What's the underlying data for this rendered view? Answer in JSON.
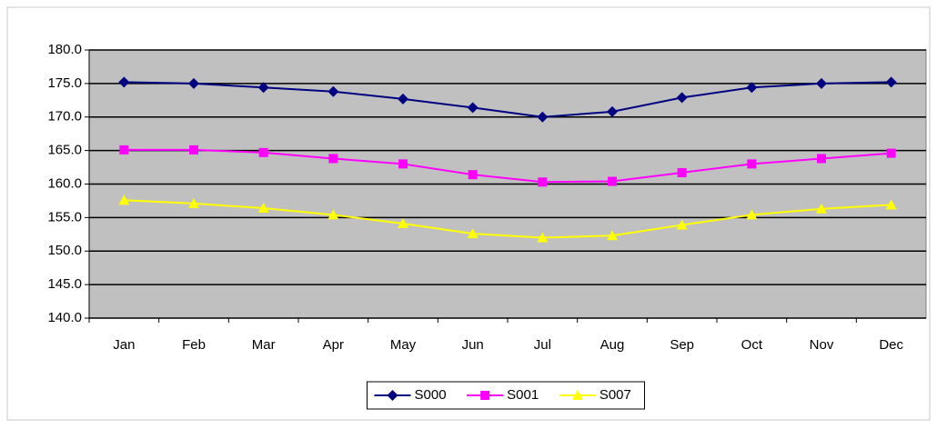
{
  "chart_data": {
    "type": "line",
    "categories": [
      "Jan",
      "Feb",
      "Mar",
      "Apr",
      "May",
      "Jun",
      "Jul",
      "Aug",
      "Sep",
      "Oct",
      "Nov",
      "Dec"
    ],
    "series": [
      {
        "name": "S000",
        "color": "#000080",
        "marker": "diamond",
        "values": [
          175.2,
          175.0,
          174.4,
          173.8,
          172.7,
          171.4,
          170.0,
          170.8,
          172.9,
          174.4,
          175.0,
          175.2
        ]
      },
      {
        "name": "S001",
        "color": "#ff00ff",
        "marker": "square",
        "values": [
          165.1,
          165.1,
          164.7,
          163.8,
          163.0,
          161.4,
          160.3,
          160.4,
          161.7,
          163.0,
          163.8,
          164.6
        ]
      },
      {
        "name": "S007",
        "color": "#ffff00",
        "marker": "triangle",
        "values": [
          157.6,
          157.1,
          156.4,
          155.4,
          154.1,
          152.6,
          152.0,
          152.3,
          153.9,
          155.4,
          156.3,
          156.9
        ]
      }
    ],
    "ylim": [
      140,
      180
    ],
    "yticks": [
      {
        "value": 140,
        "label": "140.0"
      },
      {
        "value": 145,
        "label": "145.0"
      },
      {
        "value": 150,
        "label": "150.0"
      },
      {
        "value": 155,
        "label": "155.0"
      },
      {
        "value": 160,
        "label": "160.0"
      },
      {
        "value": 165,
        "label": "165.0"
      },
      {
        "value": 170,
        "label": "170.0"
      },
      {
        "value": 175,
        "label": "175.0"
      },
      {
        "value": 180,
        "label": "180.0"
      }
    ],
    "grid": true,
    "legend": "bottom",
    "plot_background": "#c0c0c0"
  }
}
